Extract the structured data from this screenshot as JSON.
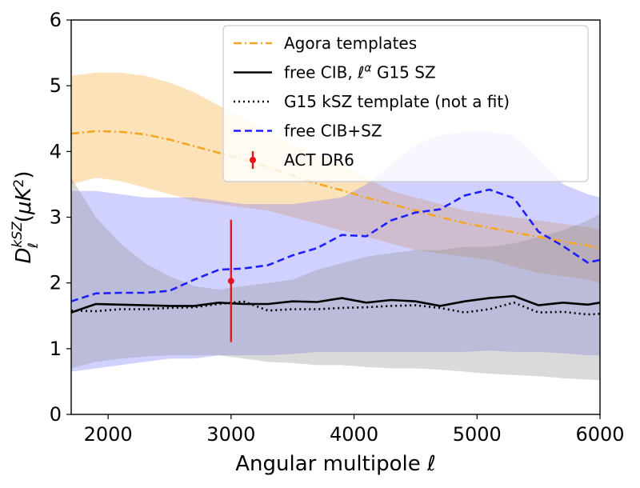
{
  "chart_data": {
    "type": "line",
    "xlabel": "Angular multipole ℓ",
    "ylabel": "D_ℓ^{kSZ} (μK²)",
    "xlim": [
      1700,
      6000
    ],
    "ylim": [
      0,
      6
    ],
    "xticks": [
      2000,
      3000,
      4000,
      5000,
      6000
    ],
    "yticks": [
      0,
      1,
      2,
      3,
      4,
      5,
      6
    ],
    "grid": false,
    "legend_position": "top-right",
    "bands": [
      {
        "name": "Agora templates band",
        "color": "#f5a623",
        "x": [
          1700,
          1900,
          2100,
          2300,
          2500,
          2700,
          2900,
          3100,
          3300,
          3500,
          3700,
          3900,
          4100,
          4300,
          4500,
          4700,
          4900,
          5100,
          5300,
          5500,
          5700,
          5900,
          6000
        ],
        "upper": [
          5.15,
          5.2,
          5.2,
          5.15,
          5.05,
          4.9,
          4.7,
          4.5,
          4.3,
          4.1,
          3.95,
          3.8,
          3.6,
          3.4,
          3.3,
          3.2,
          3.1,
          3.05,
          3.0,
          2.95,
          2.9,
          2.85,
          2.8
        ],
        "lower": [
          3.5,
          3.6,
          3.55,
          3.45,
          3.35,
          3.25,
          3.2,
          3.15,
          3.1,
          3.0,
          2.9,
          2.8,
          2.7,
          2.6,
          2.5,
          2.45,
          2.4,
          2.35,
          2.25,
          2.15,
          2.1,
          2.05,
          2.0
        ]
      },
      {
        "name": "free CIB+SZ band",
        "color": "#6f6fff",
        "x": [
          1700,
          1900,
          2100,
          2300,
          2500,
          2700,
          2900,
          3100,
          3300,
          3500,
          3700,
          3900,
          4100,
          4300,
          4500,
          4700,
          4900,
          5100,
          5300,
          5500,
          5700,
          5900,
          6000
        ],
        "upper": [
          3.4,
          3.4,
          3.35,
          3.3,
          3.3,
          3.3,
          3.25,
          3.2,
          3.2,
          3.2,
          3.25,
          3.3,
          3.5,
          3.8,
          4.1,
          4.25,
          4.3,
          4.3,
          4.25,
          3.9,
          3.5,
          3.35,
          3.3
        ],
        "lower": [
          0.65,
          0.7,
          0.75,
          0.8,
          0.85,
          0.85,
          0.9,
          0.9,
          0.9,
          0.92,
          0.95,
          0.95,
          0.95,
          0.95,
          0.95,
          0.95,
          0.95,
          0.97,
          0.95,
          0.95,
          0.93,
          0.9,
          0.9
        ]
      },
      {
        "name": "free CIB ℓ^α G15 SZ band",
        "color": "#8c8c8c",
        "x": [
          1700,
          1900,
          2100,
          2300,
          2500,
          2700,
          2900,
          3100,
          3300,
          3500,
          3700,
          3900,
          4100,
          4300,
          4500,
          4700,
          4900,
          5100,
          5300,
          5500,
          5700,
          5900,
          6000
        ],
        "upper": [
          3.6,
          3.0,
          2.6,
          2.3,
          2.1,
          1.95,
          1.9,
          1.95,
          2.0,
          2.05,
          2.2,
          2.3,
          2.4,
          2.45,
          2.5,
          2.5,
          2.55,
          2.55,
          2.6,
          2.7,
          2.8,
          2.95,
          3.05
        ],
        "lower": [
          0.7,
          0.8,
          0.85,
          0.88,
          0.9,
          0.9,
          0.9,
          0.85,
          0.8,
          0.78,
          0.75,
          0.75,
          0.72,
          0.7,
          0.7,
          0.68,
          0.65,
          0.62,
          0.6,
          0.58,
          0.55,
          0.53,
          0.52
        ]
      }
    ],
    "series": [
      {
        "name": "Agora templates",
        "color": "#f5a623",
        "style": "dash-dot",
        "x": [
          1700,
          1900,
          2100,
          2300,
          2500,
          2700,
          2900,
          3100,
          3300,
          3500,
          3700,
          3900,
          4100,
          4300,
          4500,
          4700,
          4900,
          5100,
          5300,
          5500,
          5700,
          5900,
          6000
        ],
        "y": [
          4.27,
          4.31,
          4.3,
          4.26,
          4.18,
          4.08,
          3.98,
          3.88,
          3.76,
          3.63,
          3.51,
          3.41,
          3.3,
          3.2,
          3.1,
          3.0,
          2.91,
          2.84,
          2.77,
          2.7,
          2.63,
          2.57,
          2.52
        ]
      },
      {
        "name": "free CIB, ℓ^α G15 SZ",
        "color": "#000000",
        "style": "solid",
        "x": [
          1700,
          1900,
          2100,
          2300,
          2500,
          2700,
          2900,
          3100,
          3300,
          3500,
          3700,
          3900,
          4100,
          4300,
          4500,
          4700,
          4900,
          5100,
          5300,
          5500,
          5700,
          5900,
          6000
        ],
        "y": [
          1.55,
          1.68,
          1.67,
          1.66,
          1.65,
          1.65,
          1.7,
          1.68,
          1.68,
          1.72,
          1.71,
          1.77,
          1.7,
          1.74,
          1.72,
          1.65,
          1.72,
          1.77,
          1.8,
          1.66,
          1.7,
          1.67,
          1.7
        ]
      },
      {
        "name": "G15 kSZ template (not a fit)",
        "color": "#000000",
        "style": "dotted",
        "x": [
          1700,
          1900,
          2100,
          2300,
          2500,
          2700,
          2900,
          3100,
          3300,
          3500,
          3700,
          3900,
          4100,
          4300,
          4500,
          4700,
          4900,
          5100,
          5300,
          5500,
          5700,
          5900,
          6000
        ],
        "y": [
          1.58,
          1.57,
          1.6,
          1.6,
          1.62,
          1.63,
          1.68,
          1.72,
          1.58,
          1.6,
          1.6,
          1.62,
          1.63,
          1.65,
          1.66,
          1.62,
          1.55,
          1.6,
          1.7,
          1.55,
          1.56,
          1.52,
          1.53
        ]
      },
      {
        "name": "free CIB+SZ",
        "color": "#1f1fff",
        "style": "dashed",
        "x": [
          1700,
          1900,
          2100,
          2300,
          2500,
          2700,
          2900,
          3100,
          3300,
          3500,
          3700,
          3900,
          4100,
          4300,
          4500,
          4700,
          4900,
          5100,
          5300,
          5500,
          5700,
          5900,
          6000
        ],
        "y": [
          1.72,
          1.84,
          1.85,
          1.85,
          1.88,
          2.05,
          2.2,
          2.22,
          2.27,
          2.42,
          2.53,
          2.73,
          2.71,
          2.95,
          3.07,
          3.12,
          3.33,
          3.42,
          3.29,
          2.78,
          2.56,
          2.31,
          2.35
        ]
      }
    ],
    "errorbars": [
      {
        "name": "ACT DR6",
        "color": "#e8141c",
        "x": 3000,
        "y": 2.03,
        "yerr_low": 0.93,
        "yerr_high": 0.93
      }
    ],
    "legend": [
      {
        "label": "Agora templates",
        "color": "#f5a623",
        "style": "dash-dot",
        "kind": "line"
      },
      {
        "label": "free CIB, ℓ^α G15 SZ",
        "color": "#000000",
        "style": "solid",
        "kind": "line"
      },
      {
        "label": "G15 kSZ template (not a fit)",
        "color": "#000000",
        "style": "dotted",
        "kind": "line"
      },
      {
        "label": "free CIB+SZ",
        "color": "#1f1fff",
        "style": "dashed",
        "kind": "line"
      },
      {
        "label": "ACT DR6",
        "color": "#e8141c",
        "style": "errorbar",
        "kind": "errorbar"
      }
    ]
  }
}
